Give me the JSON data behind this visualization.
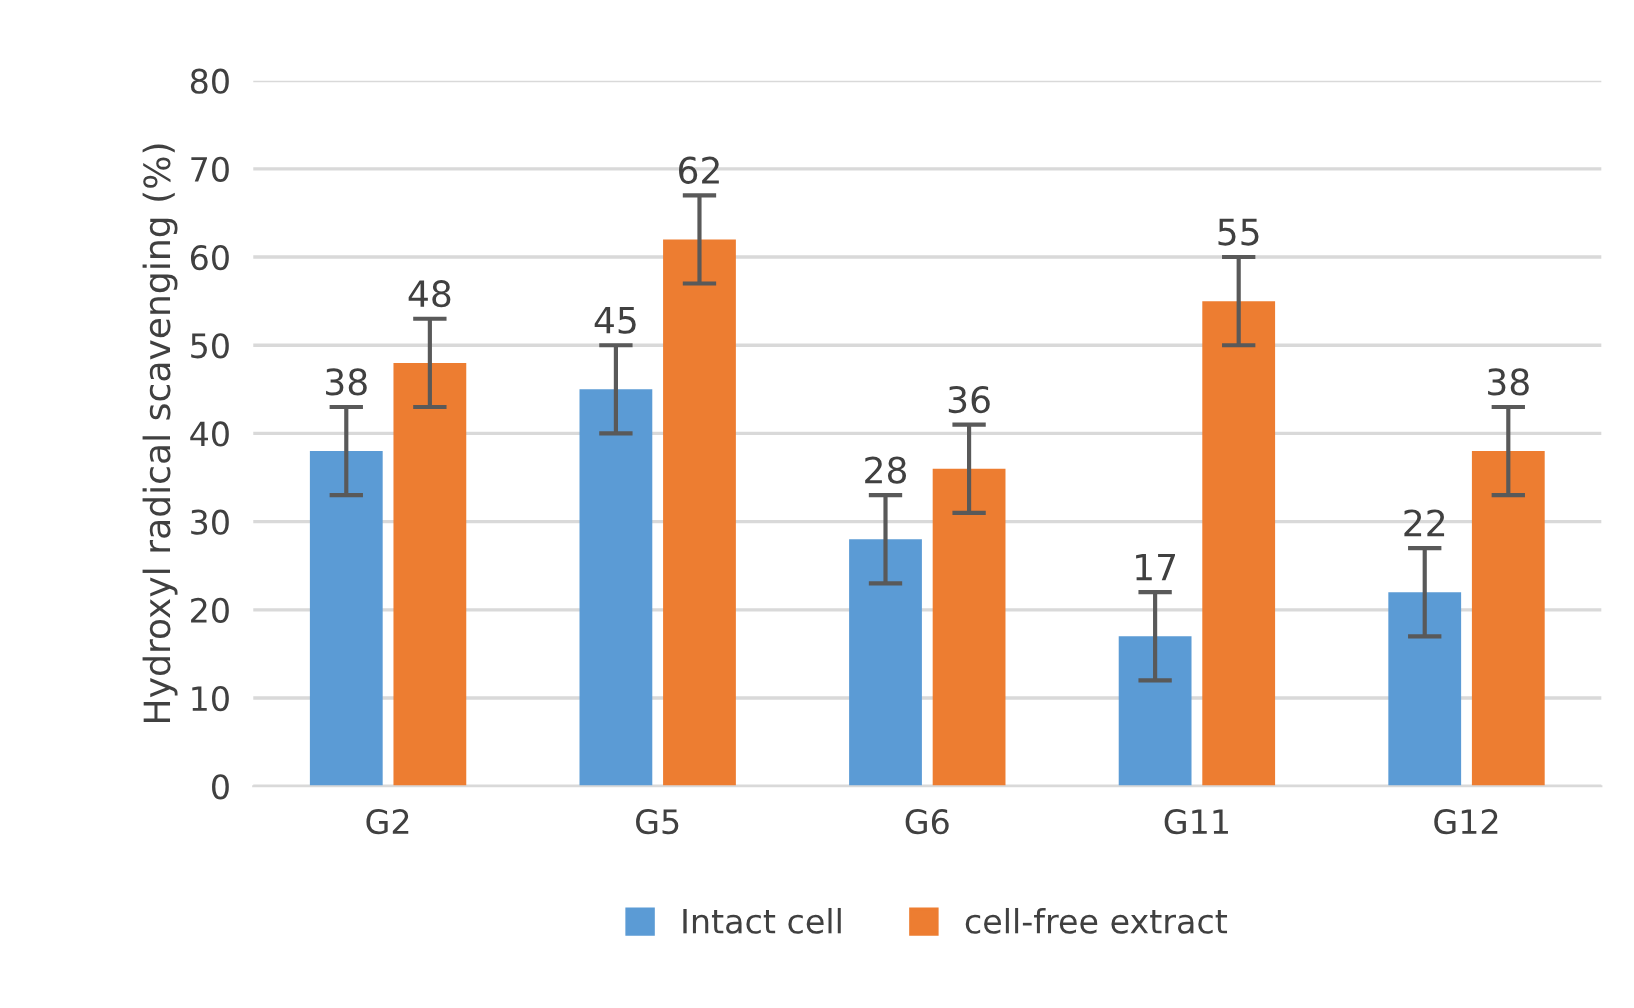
{
  "chart_data": {
    "type": "bar",
    "ylabel": "Hydroxyl radical scavenging (%)",
    "categories": [
      "G2",
      "G5",
      "G6",
      "G11",
      "G12"
    ],
    "series": [
      {
        "name": "Intact cell",
        "color": "#5b9bd5",
        "values": [
          38,
          45,
          28,
          17,
          22
        ],
        "errors": [
          5,
          5,
          5,
          5,
          5
        ]
      },
      {
        "name": "cell-free extract",
        "color": "#ed7d31",
        "values": [
          48,
          62,
          36,
          55,
          38
        ],
        "errors": [
          5,
          5,
          5,
          5,
          5
        ]
      }
    ],
    "ylim": [
      0,
      80
    ],
    "yticks": [
      0,
      10,
      20,
      30,
      40,
      50,
      60,
      70,
      80
    ],
    "grid": "y",
    "legend": "bottom",
    "data_labels": true
  }
}
